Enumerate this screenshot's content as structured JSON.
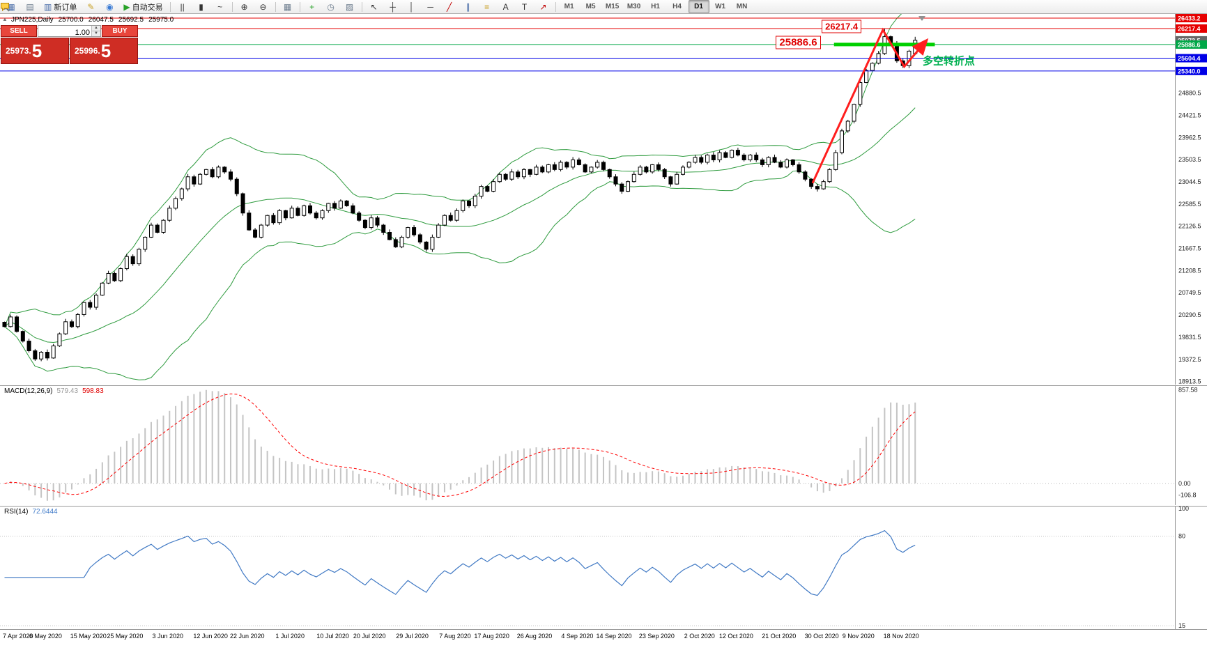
{
  "toolbar": {
    "active_timeframe": "D1",
    "items": [
      {
        "t": "btn",
        "name": "new-chart-button",
        "glyph": "▦",
        "c": "#4a6da8"
      },
      {
        "t": "btn",
        "name": "profiles-button",
        "glyph": "▤",
        "c": "#6b7b8d"
      },
      {
        "t": "btn",
        "name": "new-order-button",
        "glyph": "▥",
        "c": "#4a6da8",
        "label": "新订单"
      },
      {
        "t": "btn",
        "name": "metaeditor-button",
        "glyph": "✎",
        "c": "#c9a227"
      },
      {
        "t": "btn",
        "name": "options-button",
        "glyph": "◉",
        "c": "#3a7bd5"
      },
      {
        "t": "btn",
        "name": "autotrading-button",
        "glyph": "▶",
        "c": "#27a227",
        "label": "自动交易"
      },
      {
        "t": "sep"
      },
      {
        "t": "btn",
        "name": "bar-chart-button",
        "glyph": "||",
        "c": "#333333"
      },
      {
        "t": "btn",
        "name": "candlestick-chart-button",
        "glyph": "▮",
        "c": "#333333"
      },
      {
        "t": "btn",
        "name": "line-chart-button",
        "glyph": "~",
        "c": "#333333"
      },
      {
        "t": "sep"
      },
      {
        "t": "btn",
        "name": "zoom-in-button",
        "glyph": "⊕",
        "c": "#333333"
      },
      {
        "t": "btn",
        "name": "zoom-out-button",
        "glyph": "⊖",
        "c": "#333333"
      },
      {
        "t": "sep"
      },
      {
        "t": "btn",
        "name": "tile-windows-button",
        "glyph": "▦",
        "c": "#6b7b8d"
      },
      {
        "t": "sep"
      },
      {
        "t": "btn",
        "name": "indicators-button",
        "glyph": "+",
        "c": "#27a227"
      },
      {
        "t": "btn",
        "name": "periods-button",
        "glyph": "◷",
        "c": "#6b7b8d"
      },
      {
        "t": "btn",
        "name": "templates-button",
        "glyph": "▨",
        "c": "#6b7b8d"
      },
      {
        "t": "sep"
      },
      {
        "t": "btn",
        "name": "cursor-button",
        "glyph": "↖",
        "c": "#333333"
      },
      {
        "t": "btn",
        "name": "crosshair-button",
        "glyph": "┼",
        "c": "#333333"
      },
      {
        "t": "btn",
        "name": "vertical-line-button",
        "glyph": "│",
        "c": "#333333"
      },
      {
        "t": "btn",
        "name": "horizontal-line-button",
        "glyph": "─",
        "c": "#333333"
      },
      {
        "t": "btn",
        "name": "trendline-button",
        "glyph": "╱",
        "c": "#c00000"
      },
      {
        "t": "btn",
        "name": "channel-button",
        "glyph": "∥",
        "c": "#4a6da8"
      },
      {
        "t": "btn",
        "name": "fibonacci-button",
        "glyph": "≡",
        "c": "#c9a227"
      },
      {
        "t": "btn",
        "name": "text-button",
        "glyph": "A",
        "c": "#333333"
      },
      {
        "t": "btn",
        "name": "label-button",
        "glyph": "T",
        "c": "#333333"
      },
      {
        "t": "btn",
        "name": "arrows-button",
        "glyph": "↗",
        "c": "#c00000"
      },
      {
        "t": "sep"
      },
      {
        "t": "tf",
        "label": "M1"
      },
      {
        "t": "tf",
        "label": "M5"
      },
      {
        "t": "tf",
        "label": "M15"
      },
      {
        "t": "tf",
        "label": "M30"
      },
      {
        "t": "tf",
        "label": "H1"
      },
      {
        "t": "tf",
        "label": "H4"
      },
      {
        "t": "tf",
        "label": "D1"
      },
      {
        "t": "tf",
        "label": "W1"
      },
      {
        "t": "tf",
        "label": "MN"
      },
      {
        "t": "spacer"
      },
      {
        "t": "btn",
        "name": "search-button",
        "svg": "search"
      },
      {
        "t": "btn",
        "name": "community-chat-button",
        "svg": "chat"
      }
    ]
  },
  "chart_header": {
    "symbol_period": "JPN225,Daily",
    "open": "25700.0",
    "high": "26047.5",
    "low": "25692.5",
    "close": "25975.0"
  },
  "trade_panel": {
    "sell_label": "SELL",
    "buy_label": "BUY",
    "volume": "1.00",
    "sell_price_main": "25973.",
    "sell_price_big": "5",
    "buy_price_main": "25996.",
    "buy_price_big": "5"
  },
  "macd": {
    "label": "MACD(12,26,9)",
    "value_main": "579.43",
    "value_signal": "598.83",
    "axis": [
      "857.58",
      "0.00",
      "-106.8"
    ]
  },
  "rsi": {
    "label": "RSI(14)",
    "value": "72.6444",
    "axis": [
      "100",
      "80",
      "15"
    ]
  },
  "colors": {
    "bb_green": "#2E9B3E",
    "macd_hist": "#C4C4C4",
    "macd_signal": "#FF0000",
    "rsi_line": "#4079C4",
    "level_red": "#E60000",
    "level_blue": "#0000E6",
    "level_green": "#00A848",
    "lime": "#00D000"
  },
  "chart_data": {
    "type": "candlestick",
    "symbol": "JPN225",
    "timeframe": "Daily",
    "last_candle": {
      "open": 25700.0,
      "high": 26047.5,
      "low": 25692.5,
      "close": 25975.0
    },
    "closes": [
      20050,
      20250,
      19950,
      19750,
      19550,
      19380,
      19520,
      19400,
      19650,
      19900,
      20150,
      20050,
      20300,
      20550,
      20450,
      20700,
      20950,
      21150,
      21000,
      21250,
      21500,
      21350,
      21650,
      21900,
      22150,
      22000,
      22250,
      22500,
      22700,
      22900,
      23150,
      23000,
      23200,
      23300,
      23150,
      23350,
      23250,
      23100,
      22800,
      22400,
      22050,
      21900,
      22150,
      22350,
      22200,
      22450,
      22300,
      22500,
      22350,
      22550,
      22400,
      22300,
      22450,
      22600,
      22500,
      22650,
      22550,
      22400,
      22250,
      22100,
      22300,
      22150,
      22000,
      21850,
      21700,
      21900,
      22100,
      21950,
      21800,
      21650,
      21900,
      22150,
      22350,
      22250,
      22450,
      22650,
      22550,
      22750,
      22950,
      22850,
      23050,
      23200,
      23100,
      23250,
      23150,
      23300,
      23200,
      23350,
      23250,
      23400,
      23300,
      23450,
      23350,
      23500,
      23400,
      23250,
      23350,
      23450,
      23300,
      23150,
      23000,
      22850,
      23050,
      23200,
      23350,
      23250,
      23400,
      23300,
      23150,
      23000,
      23200,
      23350,
      23450,
      23550,
      23450,
      23600,
      23500,
      23650,
      23550,
      23700,
      23600,
      23500,
      23600,
      23500,
      23400,
      23550,
      23450,
      23350,
      23500,
      23400,
      23250,
      23100,
      22950,
      22900,
      23050,
      23300,
      23650,
      24100,
      24300,
      24650,
      25100,
      25350,
      25500,
      25700,
      26050,
      25900,
      25550,
      25450,
      25750,
      25975
    ],
    "overrides": {
      "144": {
        "h": 26217.4
      },
      "149": {
        "o": 25700,
        "h": 26047.5,
        "l": 25692.5,
        "c": 25975
      }
    },
    "bollinger": {
      "period": 20,
      "deviation": 2,
      "color": "#2E9B3E"
    },
    "y_axis": {
      "min": 18850,
      "max": 26520,
      "ticks": [
        24880.5,
        24421.5,
        23962.5,
        23503.5,
        23044.5,
        22585.5,
        22126.5,
        21667.5,
        21208.5,
        20749.5,
        20290.5,
        19831.5,
        19372.5,
        18913.5
      ]
    },
    "x_labels": [
      {
        "i": 0,
        "t": "7 Apr 2020"
      },
      {
        "i": 7,
        "t": "6 May 2020"
      },
      {
        "i": 14,
        "t": "15 May 2020"
      },
      {
        "i": 20,
        "t": "25 May 2020"
      },
      {
        "i": 27,
        "t": "3 Jun 2020"
      },
      {
        "i": 34,
        "t": "12 Jun 2020"
      },
      {
        "i": 40,
        "t": "22 Jun 2020"
      },
      {
        "i": 47,
        "t": "1 Jul 2020"
      },
      {
        "i": 54,
        "t": "10 Jul 2020"
      },
      {
        "i": 60,
        "t": "20 Jul 2020"
      },
      {
        "i": 67,
        "t": "29 Jul 2020"
      },
      {
        "i": 74,
        "t": "7 Aug 2020"
      },
      {
        "i": 80,
        "t": "17 Aug 2020"
      },
      {
        "i": 87,
        "t": "26 Aug 2020"
      },
      {
        "i": 94,
        "t": "4 Sep 2020"
      },
      {
        "i": 100,
        "t": "14 Sep 2020"
      },
      {
        "i": 107,
        "t": "23 Sep 2020"
      },
      {
        "i": 114,
        "t": "2 Oct 2020"
      },
      {
        "i": 120,
        "t": "12 Oct 2020"
      },
      {
        "i": 127,
        "t": "21 Oct 2020"
      },
      {
        "i": 134,
        "t": "30 Oct 2020"
      },
      {
        "i": 140,
        "t": "9 Nov 2020"
      },
      {
        "i": 147,
        "t": "18 Nov 2020"
      }
    ],
    "levels": [
      {
        "label": "26433.2",
        "value": 26433.2,
        "color": "#E60000"
      },
      {
        "label": "26217.4",
        "value": 26217.4,
        "color": "#E60000"
      },
      {
        "label": "25973.5",
        "value": 25973.5,
        "color": "#666666",
        "line": false
      },
      {
        "label": "25886.6",
        "value": 25886.6,
        "color": "#00A848"
      },
      {
        "label": "25604.4",
        "value": 25604.4,
        "color": "#0000E6"
      },
      {
        "label": "25340.0",
        "value": 25340.0,
        "color": "#0000E6"
      }
    ],
    "green_segment": {
      "value": 25886.6,
      "from": 136,
      "to": 152.5,
      "color": "#00D000",
      "width": 5
    },
    "zigzag": {
      "color": "#FF1E1E",
      "width": 3,
      "points": [
        [
          132.5,
          23020
        ],
        [
          144,
          26190
        ],
        [
          147.5,
          25430
        ],
        [
          151,
          25950
        ]
      ]
    },
    "annotations": [
      {
        "name": "resistance-price-label",
        "text": "26217.4",
        "i": 134,
        "v": 26265,
        "style": "box",
        "size": 13
      },
      {
        "name": "support-price-label",
        "text": "25886.6",
        "i": 126.5,
        "v": 25930,
        "style": "box",
        "size": 15
      },
      {
        "name": "turning-point-note",
        "text": "多空转折点",
        "i": 150.5,
        "v": 25555,
        "style": "green",
        "size": 15
      }
    ],
    "indicators": {
      "macd": {
        "fast": 12,
        "slow": 26,
        "signal": 9
      },
      "rsi": {
        "period": 14
      }
    }
  }
}
